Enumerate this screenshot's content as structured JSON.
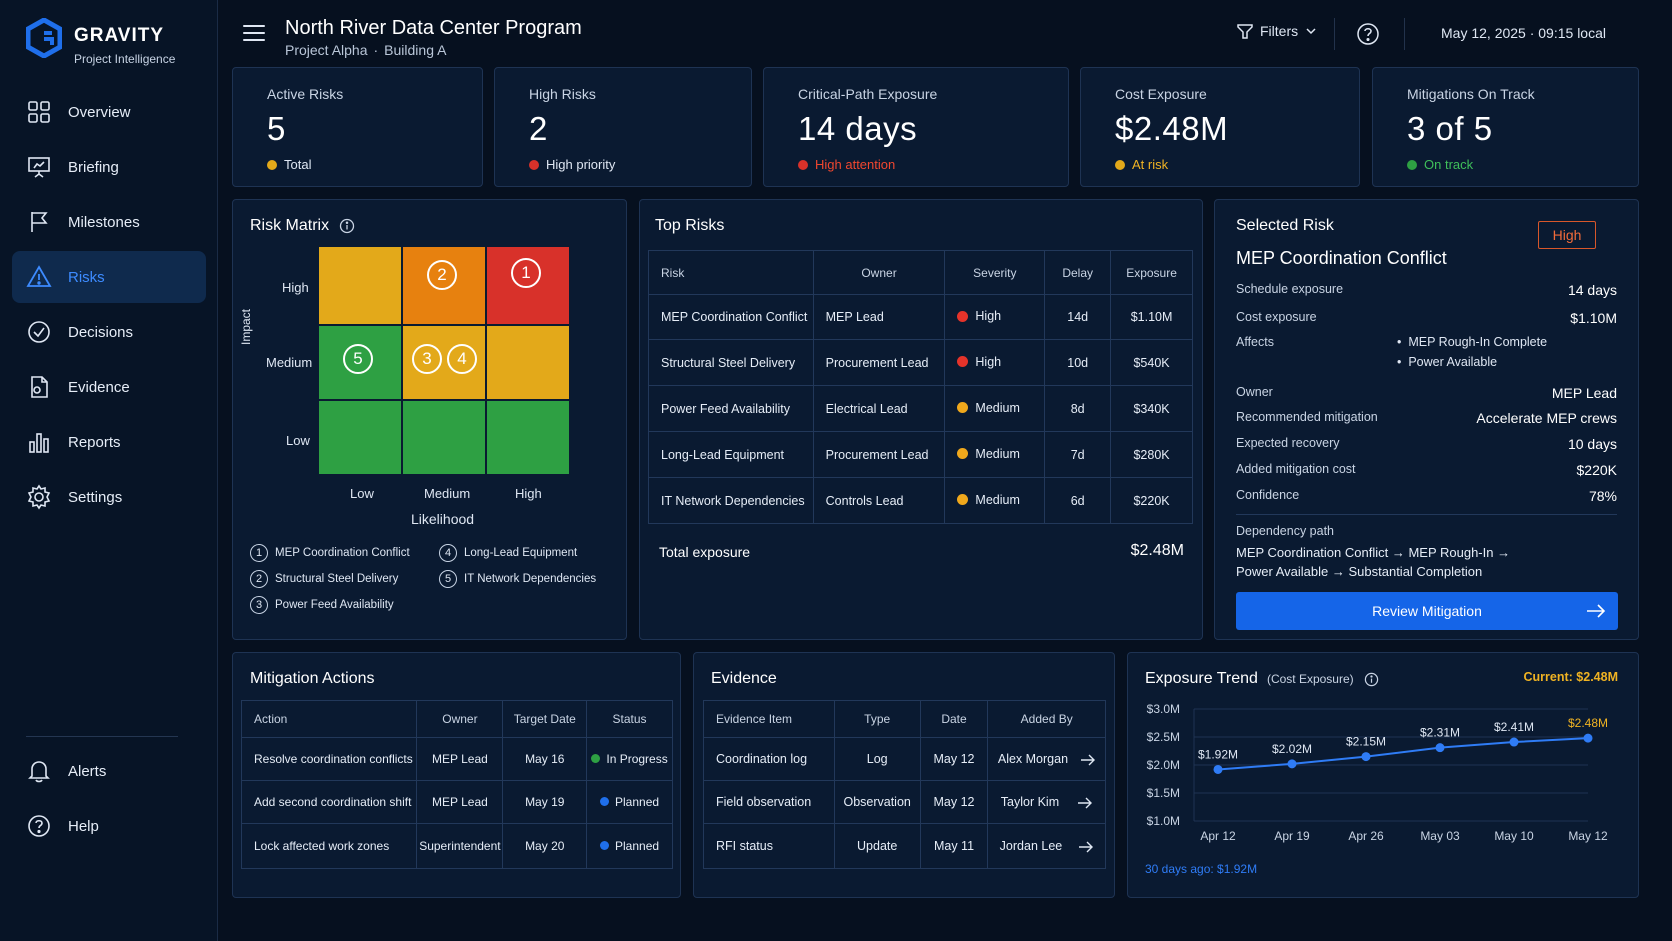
{
  "brand": {
    "name": "GRAVITY",
    "tagline": "Project Intelligence"
  },
  "nav": {
    "items": [
      {
        "label": "Overview",
        "icon": "grid-icon"
      },
      {
        "label": "Briefing",
        "icon": "presentation-icon"
      },
      {
        "label": "Milestones",
        "icon": "flag-icon"
      },
      {
        "label": "Risks",
        "icon": "warning-icon",
        "active": true
      },
      {
        "label": "Decisions",
        "icon": "check-circle-icon"
      },
      {
        "label": "Evidence",
        "icon": "document-icon"
      },
      {
        "label": "Reports",
        "icon": "bar-chart-icon"
      },
      {
        "label": "Settings",
        "icon": "gear-icon"
      }
    ],
    "bottom": [
      {
        "label": "Alerts",
        "icon": "bell-icon"
      },
      {
        "label": "Help",
        "icon": "help-icon"
      }
    ]
  },
  "header": {
    "title": "North River Data Center Program",
    "project": "Project Alpha",
    "separator": "·",
    "building": "Building A",
    "filters_label": "Filters",
    "datetime": "May 12, 2025 · 09:15 local"
  },
  "kpis": [
    {
      "label": "Active Risks",
      "value": "5",
      "foot": "Total",
      "color": "#e3a91a",
      "foot_color": "#dfe7f3"
    },
    {
      "label": "High Risks",
      "value": "2",
      "foot": "High priority",
      "color": "#d8312a",
      "foot_color": "#dfe7f3"
    },
    {
      "label": "Critical-Path Exposure",
      "value": "14 days",
      "foot": "High attention",
      "color": "#d8312a",
      "foot_color": "#f0472f"
    },
    {
      "label": "Cost Exposure",
      "value": "$2.48M",
      "foot": "At risk",
      "color": "#e3a91a",
      "foot_color": "#f0b323"
    },
    {
      "label": "Mitigations On Track",
      "value": "3 of 5",
      "foot": "On track",
      "color": "#2ea043",
      "foot_color": "#3fbf5a"
    }
  ],
  "risk_matrix": {
    "title": "Risk Matrix",
    "y_axis_label": "Impact",
    "x_axis_label": "Likelihood",
    "y_ticks": [
      "High",
      "Medium",
      "Low"
    ],
    "x_ticks": [
      "Low",
      "Medium",
      "High"
    ],
    "cells": [
      [
        "yellow",
        "orange",
        "red"
      ],
      [
        "green",
        "yellow",
        "yellow"
      ],
      [
        "green",
        "green",
        "green"
      ]
    ],
    "bubbles": [
      {
        "id": "1",
        "impact": "High",
        "likelihood": "High"
      },
      {
        "id": "2",
        "impact": "High",
        "likelihood": "Medium"
      },
      {
        "id": "3",
        "impact": "Medium",
        "likelihood": "Medium"
      },
      {
        "id": "4",
        "impact": "Medium",
        "likelihood": "Medium"
      },
      {
        "id": "5",
        "impact": "Medium",
        "likelihood": "Low"
      }
    ],
    "legend": [
      {
        "id": "1",
        "label": "MEP Coordination Conflict"
      },
      {
        "id": "2",
        "label": "Structural Steel Delivery"
      },
      {
        "id": "3",
        "label": "Power Feed Availability"
      },
      {
        "id": "4",
        "label": "Long-Lead Equipment"
      },
      {
        "id": "5",
        "label": "IT Network Dependencies"
      }
    ]
  },
  "top_risks": {
    "title": "Top Risks",
    "columns": [
      "Risk",
      "Owner",
      "Severity",
      "Delay",
      "Exposure"
    ],
    "rows": [
      {
        "risk": "MEP Coordination Conflict",
        "owner": "MEP Lead",
        "severity": "High",
        "sev_color": "#e5332a",
        "delay": "14d",
        "exposure": "$1.10M"
      },
      {
        "risk": "Structural Steel Delivery",
        "owner": "Procurement Lead",
        "severity": "High",
        "sev_color": "#e5332a",
        "delay": "10d",
        "exposure": "$540K"
      },
      {
        "risk": "Power Feed Availability",
        "owner": "Electrical Lead",
        "severity": "Medium",
        "sev_color": "#f0a81c",
        "delay": "8d",
        "exposure": "$340K"
      },
      {
        "risk": "Long-Lead Equipment",
        "owner": "Procurement Lead",
        "severity": "Medium",
        "sev_color": "#f0a81c",
        "delay": "7d",
        "exposure": "$280K"
      },
      {
        "risk": "IT Network Dependencies",
        "owner": "Controls Lead",
        "severity": "Medium",
        "sev_color": "#f0a81c",
        "delay": "6d",
        "exposure": "$220K"
      }
    ],
    "total_label": "Total exposure",
    "total_value": "$2.48M"
  },
  "selected_risk": {
    "title": "Selected Risk",
    "badge": "High",
    "name": "MEP Coordination Conflict",
    "schedule_label": "Schedule exposure",
    "schedule_value": "14 days",
    "cost_label": "Cost exposure",
    "cost_value": "$1.10M",
    "affects_label": "Affects",
    "affects": [
      "MEP Rough-In Complete",
      "Power Available"
    ],
    "owner_label": "Owner",
    "owner_value": "MEP Lead",
    "mitigation_label": "Recommended mitigation",
    "mitigation_value": "Accelerate MEP crews",
    "recovery_label": "Expected recovery",
    "recovery_value": "10 days",
    "added_cost_label": "Added mitigation cost",
    "added_cost_value": "$220K",
    "confidence_label": "Confidence",
    "confidence_value": "78%",
    "dependency_label": "Dependency path",
    "dependency_line1": "MEP Coordination Conflict → MEP Rough-In →",
    "dependency_line2": "Power Available → Substantial Completion",
    "button_label": "Review Mitigation"
  },
  "mitigation_actions": {
    "title": "Mitigation Actions",
    "columns": [
      "Action",
      "Owner",
      "Target Date",
      "Status"
    ],
    "rows": [
      {
        "action": "Resolve coordination conflicts",
        "owner": "MEP Lead",
        "date": "May 16",
        "status": "In Progress",
        "status_color": "#2ea043"
      },
      {
        "action": "Add second coordination shift",
        "owner": "MEP Lead",
        "date": "May 19",
        "status": "Planned",
        "status_color": "#1f6feb"
      },
      {
        "action": "Lock affected work zones",
        "owner": "Superintendent",
        "date": "May 20",
        "status": "Planned",
        "status_color": "#1f6feb"
      }
    ]
  },
  "evidence": {
    "title": "Evidence",
    "columns": [
      "Evidence Item",
      "Type",
      "Date",
      "Added By"
    ],
    "rows": [
      {
        "item": "Coordination log",
        "type": "Log",
        "date": "May 12",
        "by": "Alex Morgan"
      },
      {
        "item": "Field observation",
        "type": "Observation",
        "date": "May 12",
        "by": "Taylor Kim"
      },
      {
        "item": "RFI status",
        "type": "Update",
        "date": "May 11",
        "by": "Jordan Lee"
      }
    ]
  },
  "exposure_trend": {
    "title": "Exposure Trend",
    "subtitle": "(Cost Exposure)",
    "current_label": "Current: $2.48M",
    "footnote": "30 days ago: $1.92M",
    "accent": "#f0b323",
    "line_color": "#2f7cf6"
  },
  "chart_data": {
    "type": "line",
    "categories": [
      "Apr 12",
      "Apr 19",
      "Apr 26",
      "May 03",
      "May 10",
      "May 12"
    ],
    "series": [
      {
        "values": [
          1.92,
          2.02,
          2.15,
          2.31,
          2.41,
          2.48
        ]
      }
    ],
    "data_labels": [
      "$1.92M",
      "$2.02M",
      "$2.15M",
      "$2.31M",
      "$2.41M",
      "$2.48M"
    ],
    "y_ticks": [
      "$1.0M",
      "$1.5M",
      "$2.0M",
      "$2.5M",
      "$3.0M"
    ],
    "ylim": [
      1.0,
      3.0
    ],
    "grid": true,
    "legend": false
  }
}
